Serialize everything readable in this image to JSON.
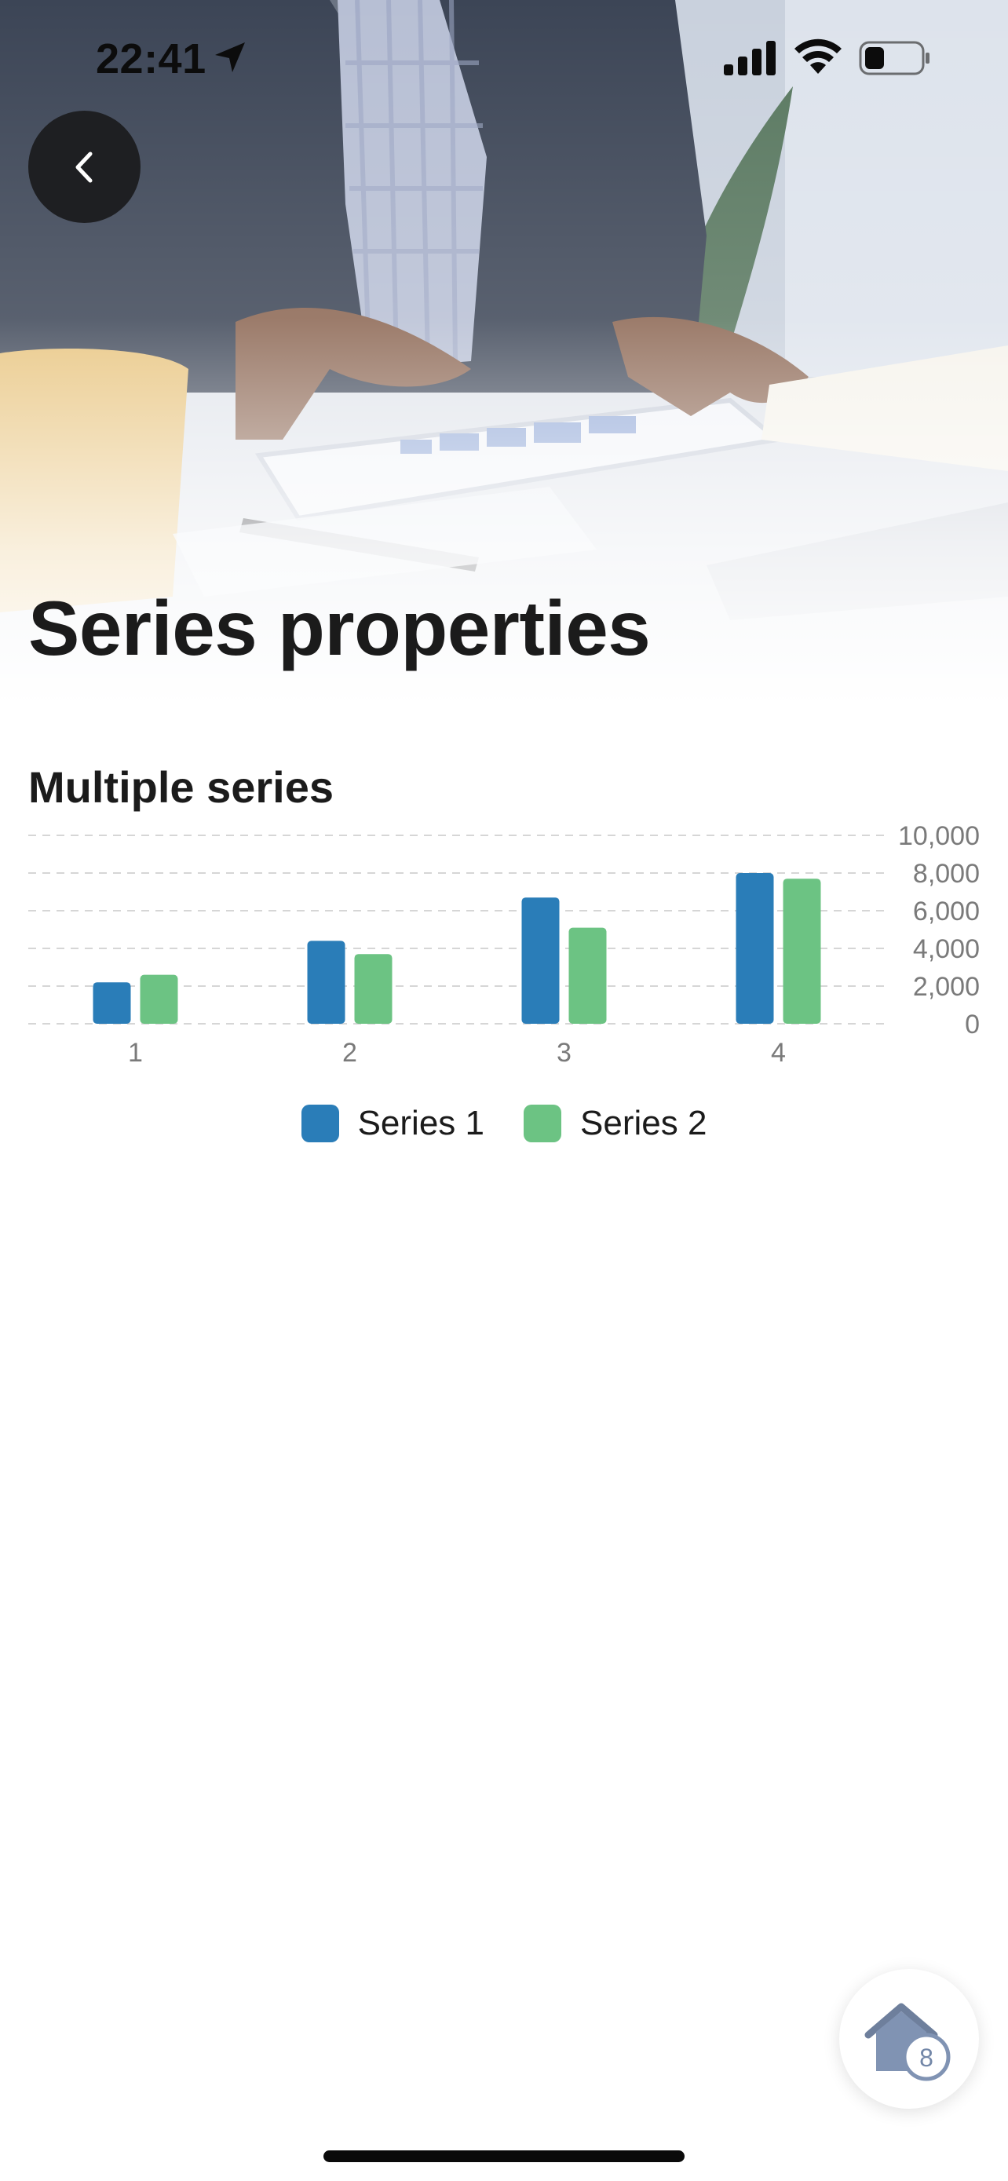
{
  "status_bar": {
    "time": "22:41",
    "icons": [
      "location-arrow-icon",
      "cellular-signal-icon",
      "wifi-icon",
      "battery-icon"
    ]
  },
  "header": {
    "back_icon": "chevron-left-icon",
    "title": "Series properties"
  },
  "section": {
    "title": "Multiple series"
  },
  "chart_data": {
    "type": "bar",
    "categories": [
      "1",
      "2",
      "3",
      "4"
    ],
    "series": [
      {
        "name": "Series 1",
        "values": [
          2200,
          4400,
          6700,
          8000
        ],
        "color": "#2a7db8"
      },
      {
        "name": "Series 2",
        "values": [
          2600,
          3700,
          5100,
          7700
        ],
        "color": "#6cc383"
      }
    ],
    "y_ticks": [
      "10,000",
      "8,000",
      "6,000",
      "4,000",
      "2,000",
      "0"
    ],
    "ylim": [
      0,
      10000
    ],
    "y_axis_side": "right",
    "grid": "dashed horizontal",
    "legend_placement": "bottom-center"
  },
  "legend": {
    "items": [
      {
        "label": "Series 1",
        "color": "#2a7db8"
      },
      {
        "label": "Series 2",
        "color": "#6cc383"
      }
    ]
  },
  "fab": {
    "icon": "home-icon",
    "badge": "8"
  }
}
